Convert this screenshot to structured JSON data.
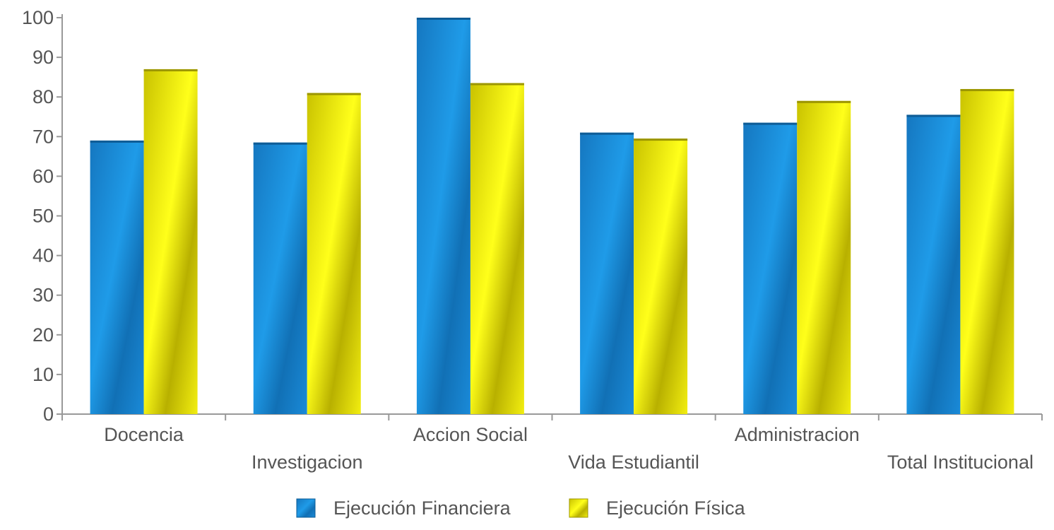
{
  "chart_data": {
    "type": "bar",
    "categories": [
      "Docencia",
      "Investigacion",
      "Accion Social",
      "Vida Estudiantil",
      "Administracion",
      "Total Institucional"
    ],
    "series": [
      {
        "name": "Ejecución Financiera",
        "values": [
          69,
          68.5,
          100,
          71,
          73.5,
          75.5
        ]
      },
      {
        "name": "Ejecución Física",
        "values": [
          87,
          81,
          83.5,
          69.5,
          79,
          82
        ]
      }
    ],
    "title": "",
    "xlabel": "",
    "ylabel": "",
    "ylim": [
      0,
      100
    ],
    "yticks": [
      0,
      10,
      20,
      30,
      40,
      50,
      60,
      70,
      80,
      90,
      100
    ],
    "grid": false,
    "legend_position": "bottom",
    "colors": {
      "series_0": "#1a86cf",
      "series_1": "#e0dc00",
      "axis": "#999999"
    }
  }
}
